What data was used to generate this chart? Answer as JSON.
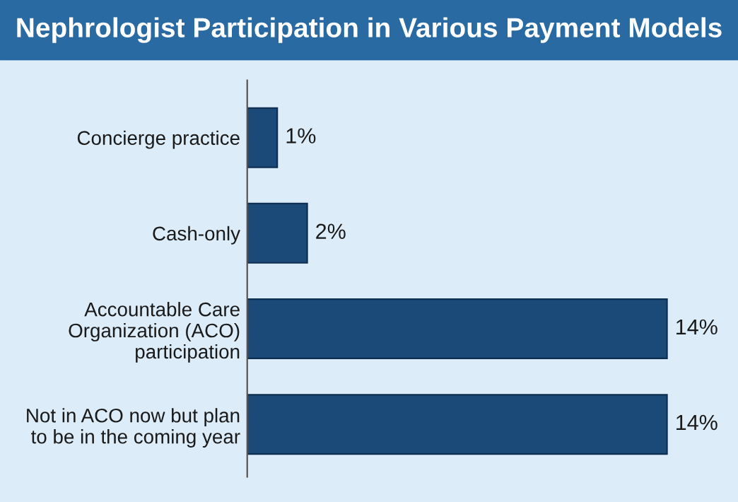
{
  "chart_data": {
    "type": "bar",
    "orientation": "horizontal",
    "title": "Nephrologist Participation in Various Payment Models",
    "categories": [
      "Concierge practice",
      "Cash-only",
      "Accountable Care\nOrganization (ACO)\nparticipation",
      "Not in ACO now but plan\nto be in the coming year"
    ],
    "values": [
      1,
      2,
      14,
      14
    ],
    "value_labels": [
      "1%",
      "2%",
      "14%",
      "14%"
    ],
    "color": "#1b4a78",
    "grid": false,
    "legend": false
  }
}
